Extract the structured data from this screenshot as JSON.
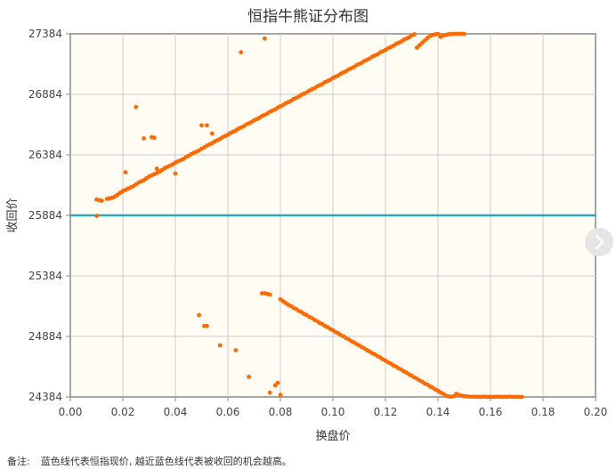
{
  "chart_data": {
    "type": "scatter",
    "title": "恒指牛熊证分布图",
    "xlabel": "换盘价",
    "ylabel": "收回价",
    "xlim": [
      0,
      0.2
    ],
    "ylim": [
      24384,
      27384
    ],
    "x_ticks": [
      "0.00",
      "0.02",
      "0.04",
      "0.06",
      "0.08",
      "0.10",
      "0.12",
      "0.14",
      "0.16",
      "0.18",
      "0.20"
    ],
    "y_ticks": [
      "24384",
      "24884",
      "25384",
      "25884",
      "26384",
      "26884",
      "27384"
    ],
    "reference_line": {
      "y": 25884,
      "color": "#2aa7c4"
    },
    "point_color": "#ff6a00",
    "plot_background": "#fffdf3",
    "grid": true,
    "bull_series": {
      "x": [
        0.01,
        0.011,
        0.012,
        0.014,
        0.015,
        0.016,
        0.017,
        0.018,
        0.019,
        0.02,
        0.021,
        0.022,
        0.023,
        0.024,
        0.025,
        0.026,
        0.027,
        0.028,
        0.029,
        0.03,
        0.031,
        0.032,
        0.033,
        0.034,
        0.035,
        0.036,
        0.037,
        0.038,
        0.039,
        0.04,
        0.041,
        0.042,
        0.043,
        0.044,
        0.045,
        0.046,
        0.047,
        0.048,
        0.049,
        0.05,
        0.051,
        0.052,
        0.053,
        0.054,
        0.055,
        0.056,
        0.057,
        0.058,
        0.059,
        0.06,
        0.061,
        0.062,
        0.063,
        0.064,
        0.065,
        0.066,
        0.067,
        0.068,
        0.069,
        0.07,
        0.071,
        0.072,
        0.073,
        0.074,
        0.075,
        0.076,
        0.077,
        0.078,
        0.079,
        0.08,
        0.081,
        0.082,
        0.083,
        0.084,
        0.085,
        0.086,
        0.087,
        0.088,
        0.089,
        0.09,
        0.091,
        0.092,
        0.093,
        0.094,
        0.095,
        0.096,
        0.097,
        0.098,
        0.099,
        0.1,
        0.101,
        0.102,
        0.103,
        0.104,
        0.105,
        0.106,
        0.107,
        0.108,
        0.109,
        0.11,
        0.111,
        0.112,
        0.113,
        0.114,
        0.115,
        0.116,
        0.117,
        0.118,
        0.119,
        0.12,
        0.121,
        0.122,
        0.123,
        0.124,
        0.125,
        0.126,
        0.127,
        0.128,
        0.129,
        0.13,
        0.131,
        0.132,
        0.133,
        0.134,
        0.135,
        0.136,
        0.137,
        0.138,
        0.139,
        0.14,
        0.141,
        0.142,
        0.143,
        0.144,
        0.145,
        0.146,
        0.147,
        0.148,
        0.149,
        0.15,
        0.021,
        0.025,
        0.028,
        0.031,
        0.032,
        0.033,
        0.04,
        0.05,
        0.052,
        0.054,
        0.065,
        0.074
      ],
      "y": [
        26015,
        26010,
        26005,
        26020,
        26025,
        26030,
        26040,
        26055,
        26070,
        26085,
        26095,
        26105,
        26115,
        26125,
        26140,
        26155,
        26165,
        26175,
        26190,
        26205,
        26215,
        26225,
        26235,
        26245,
        26260,
        26275,
        26285,
        26295,
        26305,
        26320,
        26330,
        26340,
        26350,
        26365,
        26375,
        26390,
        26400,
        26410,
        26420,
        26435,
        26445,
        26460,
        26470,
        26480,
        26495,
        26505,
        26515,
        26530,
        26540,
        26550,
        26565,
        26575,
        26585,
        26600,
        26610,
        26620,
        26635,
        26645,
        26655,
        26670,
        26680,
        26690,
        26705,
        26715,
        26725,
        26740,
        26750,
        26760,
        26775,
        26785,
        26795,
        26810,
        26820,
        26830,
        26845,
        26855,
        26865,
        26880,
        26890,
        26900,
        26915,
        26925,
        26935,
        26950,
        26960,
        26970,
        26985,
        26995,
        27005,
        27020,
        27030,
        27040,
        27055,
        27065,
        27075,
        27090,
        27100,
        27110,
        27125,
        27135,
        27145,
        27160,
        27170,
        27180,
        27195,
        27205,
        27215,
        27230,
        27240,
        27250,
        27265,
        27275,
        27285,
        27300,
        27310,
        27320,
        27335,
        27345,
        27355,
        27370,
        27380,
        27270,
        27290,
        27310,
        27330,
        27350,
        27365,
        27375,
        27380,
        27383,
        27360,
        27370,
        27375,
        27380,
        27382,
        27383,
        27384,
        27383,
        27384,
        27383,
        26240,
        26779,
        26520,
        26530,
        26525,
        26270,
        26230,
        26628,
        26628,
        26560,
        27232,
        27345
      ],
      "_comment_": ""
    },
    "bear_series": {
      "x": [
        0.01,
        0.049,
        0.051,
        0.052,
        0.057,
        0.063,
        0.068,
        0.073,
        0.074,
        0.075,
        0.076,
        0.079,
        0.08,
        0.081,
        0.082,
        0.083,
        0.084,
        0.085,
        0.086,
        0.087,
        0.088,
        0.089,
        0.09,
        0.091,
        0.092,
        0.093,
        0.094,
        0.095,
        0.096,
        0.097,
        0.098,
        0.099,
        0.1,
        0.101,
        0.102,
        0.103,
        0.104,
        0.105,
        0.106,
        0.107,
        0.108,
        0.109,
        0.11,
        0.111,
        0.112,
        0.113,
        0.114,
        0.115,
        0.116,
        0.117,
        0.118,
        0.119,
        0.12,
        0.121,
        0.122,
        0.123,
        0.124,
        0.125,
        0.126,
        0.127,
        0.128,
        0.129,
        0.13,
        0.131,
        0.132,
        0.133,
        0.134,
        0.135,
        0.136,
        0.137,
        0.138,
        0.139,
        0.14,
        0.141,
        0.142,
        0.143,
        0.144,
        0.145,
        0.146,
        0.147,
        0.148,
        0.149,
        0.15,
        0.151,
        0.152,
        0.153,
        0.154,
        0.155,
        0.156,
        0.157,
        0.158,
        0.159,
        0.16,
        0.161,
        0.162,
        0.163,
        0.164,
        0.165,
        0.166,
        0.167,
        0.168,
        0.169,
        0.17,
        0.171,
        0.172,
        0.076,
        0.078,
        0.08
      ],
      "y": [
        25880,
        25060,
        24970,
        24970,
        24810,
        24770,
        24550,
        25240,
        25240,
        25235,
        25230,
        24500,
        25190,
        25175,
        25160,
        25145,
        25135,
        25120,
        25110,
        25095,
        25085,
        25070,
        25060,
        25045,
        25035,
        25020,
        25010,
        24995,
        24985,
        24970,
        24960,
        24945,
        24935,
        24920,
        24910,
        24895,
        24885,
        24870,
        24860,
        24845,
        24835,
        24820,
        24810,
        24795,
        24785,
        24770,
        24760,
        24745,
        24735,
        24720,
        24710,
        24695,
        24685,
        24670,
        24660,
        24645,
        24635,
        24620,
        24610,
        24595,
        24585,
        24570,
        24560,
        24545,
        24535,
        24520,
        24510,
        24495,
        24485,
        24470,
        24460,
        24445,
        24435,
        24420,
        24410,
        24395,
        24388,
        24385,
        24390,
        24410,
        24400,
        24395,
        24390,
        24388,
        24386,
        24385,
        24386,
        24385,
        24384,
        24385,
        24386,
        24384,
        24385,
        24384,
        24385,
        24386,
        24384,
        24385,
        24384,
        24386,
        24385,
        24384,
        24385,
        24384,
        24384,
        24420,
        24480,
        24400
      ]
    }
  },
  "note": {
    "label": "备注:",
    "text": "蓝色线代表恒指现价, 越近蓝色线代表被收回的机会越高。"
  },
  "nav_icon": "chevron-right-icon"
}
